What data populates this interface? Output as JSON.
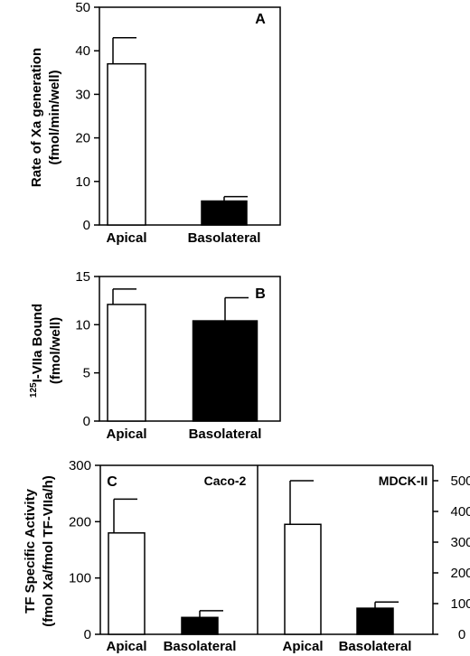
{
  "colors": {
    "apical_fill": "#ffffff",
    "basolateral_fill": "#000000",
    "stroke": "#000000"
  },
  "chart_data": [
    {
      "panel": "A",
      "type": "bar",
      "categories": [
        "Apical",
        "Basolateral"
      ],
      "values": [
        37,
        5.5
      ],
      "errors": [
        6,
        1
      ],
      "ylabel": "Rate of  Xa generation",
      "ylabel2": "(fmol/min/well)",
      "ylim": [
        0,
        50
      ],
      "yticks": [
        0,
        10,
        20,
        30,
        40,
        50
      ],
      "grid": false
    },
    {
      "panel": "B",
      "type": "bar",
      "categories": [
        "Apical",
        "Basolateral"
      ],
      "values": [
        12.1,
        10.4
      ],
      "errors": [
        1.6,
        2.4
      ],
      "ylabel_sup": "125",
      "ylabel": "I-VIIa Bound",
      "ylabel2": "(fmol/well)",
      "ylim": [
        0,
        15
      ],
      "yticks": [
        0,
        5,
        10,
        15
      ],
      "grid": false
    },
    {
      "panel": "C",
      "type": "bar",
      "subtitle": "Caco-2",
      "categories": [
        "Apical",
        "Basolateral"
      ],
      "values": [
        180,
        30
      ],
      "errors": [
        60,
        12
      ],
      "ylabel": "TF Specific Activity",
      "ylabel2": "(fmol Xa/fmol TF-VIIa/h)",
      "ylim": [
        0,
        300
      ],
      "yticks": [
        0,
        100,
        200,
        300
      ],
      "grid": false
    },
    {
      "panel": "C-right",
      "type": "bar",
      "subtitle": "MDCK-II",
      "categories": [
        "Apical",
        "Basolateral"
      ],
      "values": [
        358,
        85
      ],
      "errors": [
        142,
        20
      ],
      "ylim": [
        0,
        550
      ],
      "yticks": [
        0,
        100,
        200,
        300,
        400,
        500
      ],
      "grid": false
    }
  ]
}
